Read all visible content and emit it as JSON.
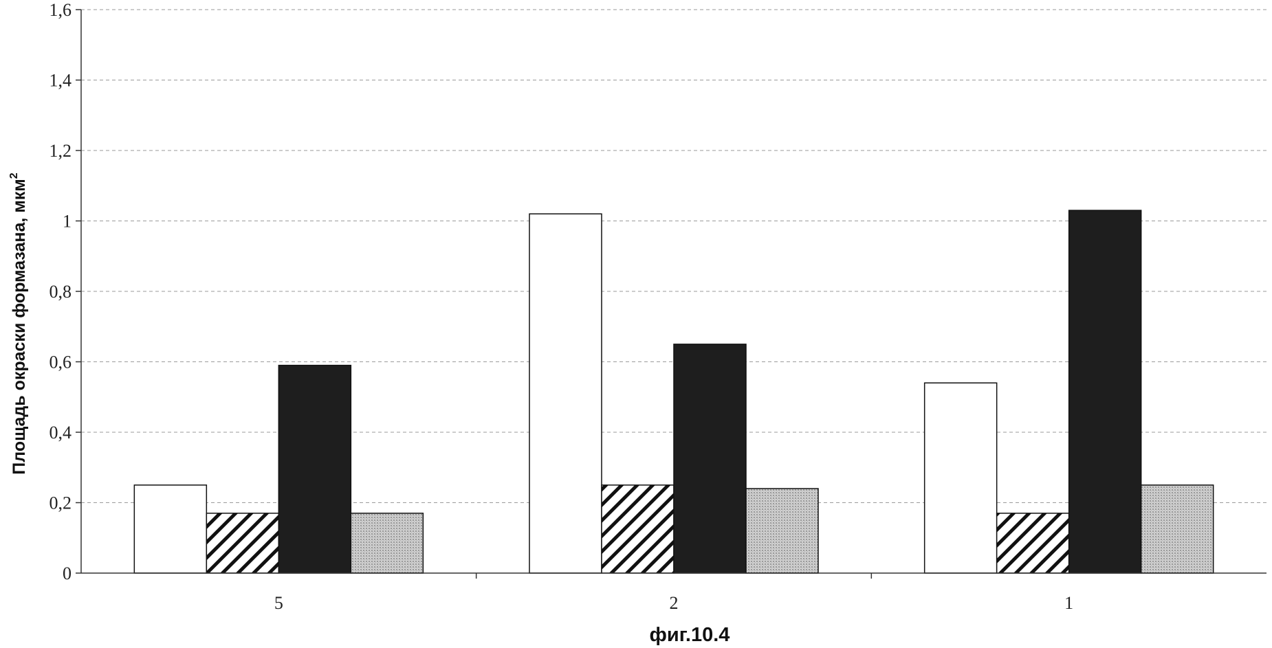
{
  "chart_data": {
    "type": "bar",
    "title": "",
    "xlabel": "",
    "ylabel": "Площадь окраски формазана, мкм",
    "ylabel_superscript": "2",
    "caption": "фиг.10.4",
    "categories": [
      "5",
      "2",
      "1"
    ],
    "series": [
      {
        "values": [
          0.25,
          1.02,
          0.54
        ],
        "fill": "#ffffff",
        "pattern": "none"
      },
      {
        "values": [
          0.17,
          0.25,
          0.17
        ],
        "fill": "#ffffff",
        "pattern": "diagonal-hatch"
      },
      {
        "values": [
          0.59,
          0.65,
          1.03
        ],
        "fill": "#1e1e1e",
        "pattern": "none"
      },
      {
        "values": [
          0.17,
          0.24,
          0.25
        ],
        "fill": "#c8c8c8",
        "pattern": "fine-dots"
      }
    ],
    "ylim": [
      0,
      1.6
    ],
    "yticks": [
      "0",
      "0,2",
      "0,4",
      "0,6",
      "0,8",
      "1",
      "1,2",
      "1,4",
      "1,6"
    ],
    "ytick_values": [
      0,
      0.2,
      0.4,
      0.6,
      0.8,
      1.0,
      1.2,
      1.4,
      1.6
    ],
    "grid": true,
    "grid_style": "dashed",
    "legend": "none"
  }
}
